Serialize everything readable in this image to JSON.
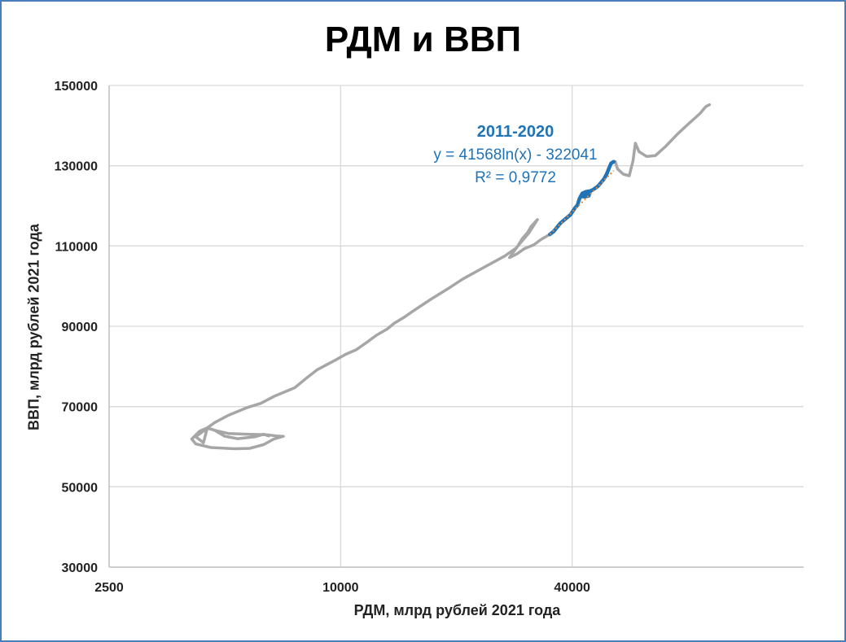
{
  "chart_data": {
    "type": "scatter",
    "title": "РДМ и ВВП",
    "xlabel": "РДМ, млрд рублей 2021 года",
    "ylabel": "ВВП, млрд рублей 2021 года",
    "x_scale": "log",
    "xlim": [
      2500,
      160000
    ],
    "ylim": [
      30000,
      150000
    ],
    "x_ticks": [
      2500,
      10000,
      40000
    ],
    "x_tick_labels": [
      "2500",
      "10000",
      "40000"
    ],
    "y_ticks": [
      30000,
      50000,
      70000,
      90000,
      110000,
      130000,
      150000
    ],
    "y_tick_labels": [
      "30000",
      "50000",
      "70000",
      "90000",
      "110000",
      "130000",
      "150000"
    ],
    "grid": true,
    "series": [
      {
        "color": "#a6a6a6",
        "points": [
          [
            6500,
            62700
          ],
          [
            6300,
            63100
          ],
          [
            6000,
            62500
          ],
          [
            5400,
            62000
          ],
          [
            5000,
            62600
          ],
          [
            4700,
            64100
          ],
          [
            4550,
            64600
          ],
          [
            4500,
            64700
          ],
          [
            4300,
            63900
          ],
          [
            4100,
            61900
          ],
          [
            4200,
            60700
          ],
          [
            4600,
            59800
          ],
          [
            5300,
            59500
          ],
          [
            5800,
            59600
          ],
          [
            6300,
            60500
          ],
          [
            6700,
            61900
          ],
          [
            7100,
            62600
          ],
          [
            6800,
            62700
          ],
          [
            6400,
            63000
          ],
          [
            5800,
            63100
          ],
          [
            5100,
            63300
          ],
          [
            4800,
            63900
          ],
          [
            4500,
            64600
          ],
          [
            4200,
            62500
          ],
          [
            4400,
            61000
          ],
          [
            4500,
            64700
          ],
          [
            4700,
            66000
          ],
          [
            5100,
            67800
          ],
          [
            5700,
            69700
          ],
          [
            6200,
            70800
          ],
          [
            6700,
            72500
          ],
          [
            7600,
            74700
          ],
          [
            8200,
            77300
          ],
          [
            8700,
            79200
          ],
          [
            9700,
            81600
          ],
          [
            10300,
            83000
          ],
          [
            11000,
            84200
          ],
          [
            11700,
            86000
          ],
          [
            12400,
            87800
          ],
          [
            13200,
            89300
          ],
          [
            13800,
            90800
          ],
          [
            14700,
            92400
          ],
          [
            15600,
            94100
          ],
          [
            17200,
            96800
          ],
          [
            19200,
            99600
          ],
          [
            20800,
            101800
          ],
          [
            23500,
            104600
          ],
          [
            26700,
            107500
          ],
          [
            28600,
            109500
          ],
          [
            30900,
            113300
          ],
          [
            32500,
            116600
          ],
          [
            31300,
            114900
          ],
          [
            30600,
            113300
          ],
          [
            29700,
            111900
          ],
          [
            28800,
            109800
          ],
          [
            28100,
            108400
          ],
          [
            27500,
            107100
          ],
          [
            28700,
            108000
          ],
          [
            30000,
            109300
          ],
          [
            31800,
            110300
          ],
          [
            33200,
            111600
          ],
          [
            35000,
            112900
          ]
        ]
      },
      {
        "color": "#a6a6a6",
        "points": [
          [
            51300,
            131000
          ],
          [
            51800,
            131000
          ],
          [
            52500,
            129200
          ],
          [
            54300,
            127900
          ],
          [
            56300,
            127500
          ],
          [
            57600,
            131300
          ],
          [
            58400,
            135600
          ],
          [
            59700,
            133500
          ],
          [
            62500,
            132300
          ],
          [
            65800,
            132500
          ],
          [
            70000,
            134800
          ],
          [
            75000,
            137800
          ],
          [
            80000,
            140300
          ],
          [
            86000,
            143000
          ],
          [
            89000,
            144700
          ],
          [
            91000,
            145200
          ]
        ]
      },
      {
        "color": "#1f73b7",
        "points": [
          [
            35000,
            112900
          ],
          [
            35800,
            113600
          ],
          [
            37300,
            115700
          ],
          [
            39600,
            117800
          ],
          [
            40700,
            119500
          ],
          [
            41300,
            120200
          ],
          [
            41800,
            121800
          ],
          [
            42500,
            123100
          ],
          [
            43400,
            123500
          ],
          [
            44600,
            123700
          ],
          [
            44200,
            122500
          ],
          [
            43200,
            122300
          ],
          [
            42100,
            122400
          ],
          [
            43500,
            123200
          ],
          [
            45300,
            124000
          ],
          [
            46700,
            124900
          ],
          [
            48400,
            126700
          ],
          [
            49300,
            128100
          ],
          [
            50000,
            129600
          ],
          [
            50500,
            130600
          ],
          [
            51300,
            131000
          ]
        ]
      }
    ],
    "trendline": {
      "equation": "y = 41568ln(x) - 322041",
      "r_squared": "R² = 0,9772",
      "period": "2011-2020",
      "a": 41568,
      "b": -322041,
      "x_range": [
        35000,
        51300
      ],
      "color": "#e0833b"
    }
  }
}
